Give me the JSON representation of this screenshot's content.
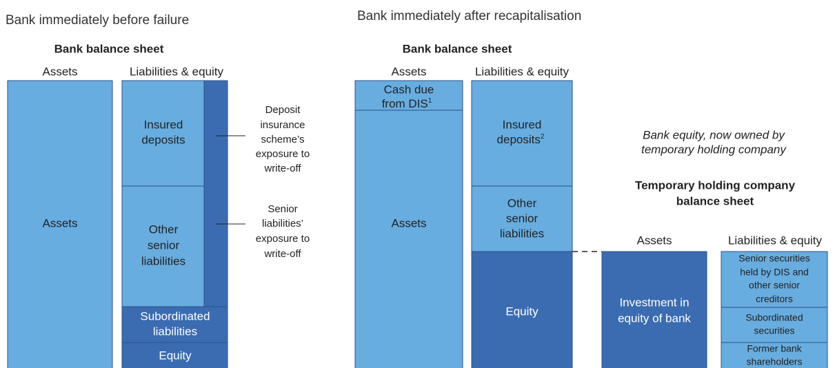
{
  "left": {
    "heading": "Bank immediately before failure",
    "balance_sheet": {
      "title": "Bank balance sheet",
      "assets_header": "Assets",
      "liabilities_header": "Liabilities & equity",
      "assets": [
        {
          "lines": [
            "Assets"
          ]
        }
      ],
      "liabilities": [
        {
          "lines": [
            "Insured",
            "deposits"
          ]
        },
        {
          "lines": [
            "Other",
            "senior",
            "liabilities"
          ]
        },
        {
          "lines": [
            "Subordinated",
            "liabilities"
          ]
        },
        {
          "lines": [
            "Equity"
          ]
        }
      ]
    },
    "annotations": [
      [
        "Deposit",
        "insurance",
        "scheme’s",
        "exposure to",
        "write-off"
      ],
      [
        "Senior",
        "liabilities’",
        "exposure to",
        "write-off"
      ]
    ]
  },
  "right": {
    "heading": "Bank immediately after recapitalisation",
    "balance_sheet": {
      "title": "Bank balance sheet",
      "assets_header": "Assets",
      "liabilities_header": "Liabilities & equity",
      "assets": [
        {
          "lines": [
            "Cash due",
            "from DIS"
          ],
          "note": "1"
        },
        {
          "lines": [
            "Assets"
          ]
        }
      ],
      "liabilities": [
        {
          "lines": [
            "Insured",
            "deposits"
          ],
          "note": "2"
        },
        {
          "lines": [
            "Other",
            "senior",
            "liabilities"
          ]
        },
        {
          "lines": [
            "Equity"
          ]
        }
      ]
    },
    "equity_note": [
      "Bank equity, now owned by",
      "temporary holding company"
    ],
    "holding_company": {
      "title": [
        "Temporary holding company",
        "balance sheet"
      ],
      "assets_header": "Assets",
      "liabilities_header": "Liabilities & equity",
      "assets": [
        {
          "lines": [
            "Investment in",
            "equity of bank"
          ]
        }
      ],
      "liabilities": [
        {
          "lines": [
            "Senior securities",
            "held by DIS and",
            "other senior",
            "creditors"
          ]
        },
        {
          "lines": [
            "Subordinated",
            "securities"
          ]
        },
        {
          "lines": [
            "Former bank",
            "shareholders"
          ]
        }
      ]
    }
  }
}
